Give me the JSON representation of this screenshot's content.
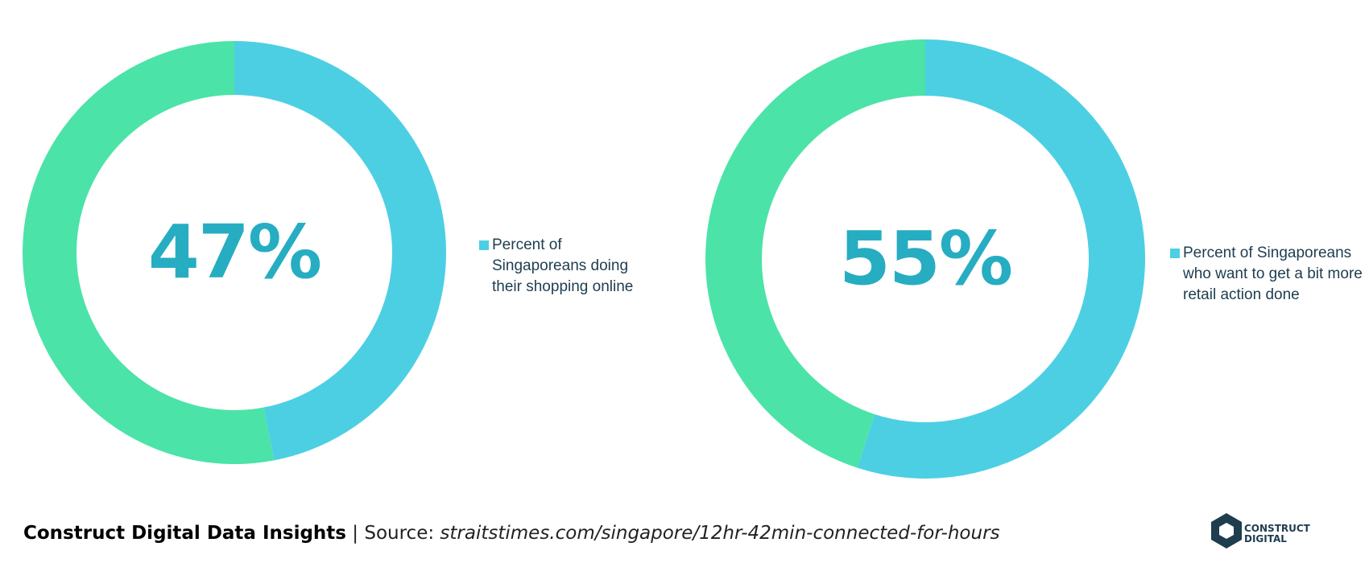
{
  "chart_data": [
    {
      "type": "donut",
      "categories": [
        "Percent of Singaporeans doing their shopping online",
        null
      ],
      "values": [
        47,
        53
      ],
      "value_labels": [
        "47%",
        null
      ],
      "colors": [
        "#4ccfe3",
        "#4be3a8"
      ]
    },
    {
      "type": "donut",
      "categories": [
        "Percent of Singaporeans who want to get a bit more retail action done",
        null
      ],
      "values": [
        55,
        45
      ],
      "value_labels": [
        "55%",
        null
      ],
      "colors": [
        "#4ccfe3",
        "#4be3a8"
      ]
    }
  ],
  "footer": {
    "brand": "Construct Digital Data Insights",
    "source_label": "| Source:",
    "source": "straitstimes.com/singapore/12hr-42min-connected-for-hours",
    "logo_line1": "CONSTRUCT",
    "logo_line2": "DIGITAL"
  }
}
